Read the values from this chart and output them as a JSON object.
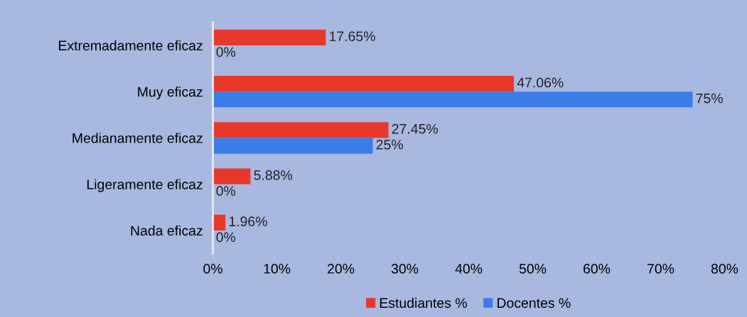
{
  "chart_data": {
    "type": "bar",
    "orientation": "horizontal",
    "categories": [
      "Extremadamente eficaz",
      "Muy eficaz",
      "Medianamente eficaz",
      "Ligeramente eficaz",
      "Nada eficaz"
    ],
    "series": [
      {
        "name": "Estudiantes %",
        "color": "#e8382b",
        "values": [
          17.65,
          47.06,
          27.45,
          5.88,
          1.96
        ],
        "value_labels": [
          "17.65%",
          "47.06%",
          "27.45%",
          "5.88%",
          "1.96%"
        ]
      },
      {
        "name": "Docentes %",
        "color": "#3a7de8",
        "values": [
          0,
          75,
          25,
          0,
          0
        ],
        "value_labels": [
          "0%",
          "75%",
          "25%",
          "0%",
          "0%"
        ]
      }
    ],
    "xlim": [
      0,
      80
    ],
    "xticks": [
      {
        "value": 0,
        "label": "0%"
      },
      {
        "value": 10,
        "label": "10%"
      },
      {
        "value": 20,
        "label": "20%"
      },
      {
        "value": 30,
        "label": "30%"
      },
      {
        "value": 40,
        "label": "40%"
      },
      {
        "value": 50,
        "label": "50%"
      },
      {
        "value": 60,
        "label": "60%"
      },
      {
        "value": 70,
        "label": "70%"
      },
      {
        "value": 80,
        "label": "80%"
      }
    ],
    "grid": false,
    "legend": "bottom"
  }
}
